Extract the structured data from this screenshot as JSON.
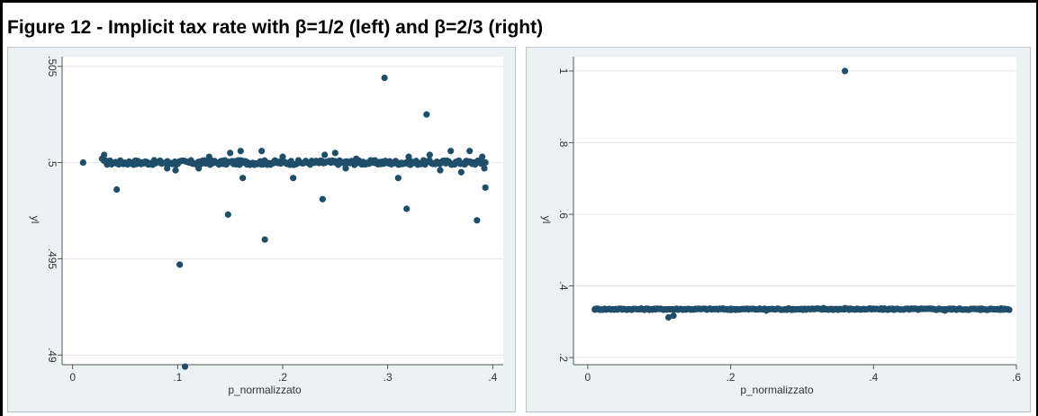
{
  "figure_title": "Figure 12 - Implicit tax rate with β=1/2 (left) and β=2/3 (right)",
  "colors": {
    "marker": "#1f4e6b",
    "plot_bg": "#ffffff",
    "panel_bg": "#eaf2f3",
    "grid": "#e2e8ea",
    "axis": "#555555"
  },
  "chart_data": [
    {
      "type": "scatter",
      "xlabel": "p_normalizzato",
      "ylabel": "yl",
      "xlim": [
        -0.01,
        0.41
      ],
      "ylim": [
        0.4895,
        0.5055
      ],
      "xticks": [
        0,
        0.1,
        0.2,
        0.3,
        0.4
      ],
      "xtick_labels": [
        "0",
        ".1",
        ".2",
        ".3",
        ".4"
      ],
      "yticks": [
        0.49,
        0.495,
        0.5,
        0.505
      ],
      "ytick_labels": [
        ".49",
        ".495",
        ".5",
        ".505"
      ],
      "grid": true,
      "band": {
        "x": [
          0.03,
          0.393
        ],
        "y": 0.5,
        "spread": 0.00012
      },
      "points": [
        [
          0.01,
          0.5
        ],
        [
          0.028,
          0.5002
        ],
        [
          0.03,
          0.5004
        ],
        [
          0.042,
          0.4986
        ],
        [
          0.06,
          0.5001
        ],
        [
          0.075,
          0.4999
        ],
        [
          0.09,
          0.4997
        ],
        [
          0.098,
          0.4996
        ],
        [
          0.102,
          0.4947
        ],
        [
          0.107,
          0.4894
        ],
        [
          0.12,
          0.4997
        ],
        [
          0.13,
          0.5003
        ],
        [
          0.148,
          0.4973
        ],
        [
          0.15,
          0.5005
        ],
        [
          0.16,
          0.5006
        ],
        [
          0.162,
          0.4992
        ],
        [
          0.18,
          0.5006
        ],
        [
          0.183,
          0.496
        ],
        [
          0.2,
          0.5003
        ],
        [
          0.21,
          0.4992
        ],
        [
          0.238,
          0.4981
        ],
        [
          0.24,
          0.5004
        ],
        [
          0.25,
          0.5005
        ],
        [
          0.26,
          0.4997
        ],
        [
          0.27,
          0.5002
        ],
        [
          0.297,
          0.5044
        ],
        [
          0.31,
          0.4992
        ],
        [
          0.318,
          0.4976
        ],
        [
          0.32,
          0.5003
        ],
        [
          0.337,
          0.5025
        ],
        [
          0.34,
          0.5004
        ],
        [
          0.35,
          0.4996
        ],
        [
          0.36,
          0.5006
        ],
        [
          0.37,
          0.4995
        ],
        [
          0.378,
          0.5006
        ],
        [
          0.385,
          0.497
        ],
        [
          0.39,
          0.5003
        ],
        [
          0.393,
          0.4987
        ],
        [
          0.392,
          0.4997
        ]
      ]
    },
    {
      "type": "scatter",
      "xlabel": "p_normalizzato",
      "ylabel": "yl",
      "xlim": [
        -0.02,
        0.6
      ],
      "ylim": [
        0.18,
        1.04
      ],
      "xticks": [
        0,
        0.2,
        0.4,
        0.6
      ],
      "xtick_labels": [
        "0",
        ".2",
        ".4",
        ".6"
      ],
      "yticks": [
        0.2,
        0.4,
        0.6,
        0.8,
        1
      ],
      "ytick_labels": [
        ".2",
        ".4",
        ".6",
        ".8",
        "1"
      ],
      "grid": true,
      "band": {
        "x": [
          0.01,
          0.59
        ],
        "y": 0.335,
        "spread": 0.002
      },
      "points": [
        [
          0.01,
          0.335
        ],
        [
          0.012,
          0.335
        ],
        [
          0.03,
          0.335
        ],
        [
          0.113,
          0.312
        ],
        [
          0.12,
          0.317
        ],
        [
          0.2,
          0.333
        ],
        [
          0.25,
          0.331
        ],
        [
          0.33,
          0.338
        ],
        [
          0.36,
          1.0
        ],
        [
          0.36,
          0.338
        ],
        [
          0.45,
          0.334
        ],
        [
          0.5,
          0.331
        ],
        [
          0.55,
          0.333
        ],
        [
          0.585,
          0.335
        ]
      ]
    }
  ]
}
